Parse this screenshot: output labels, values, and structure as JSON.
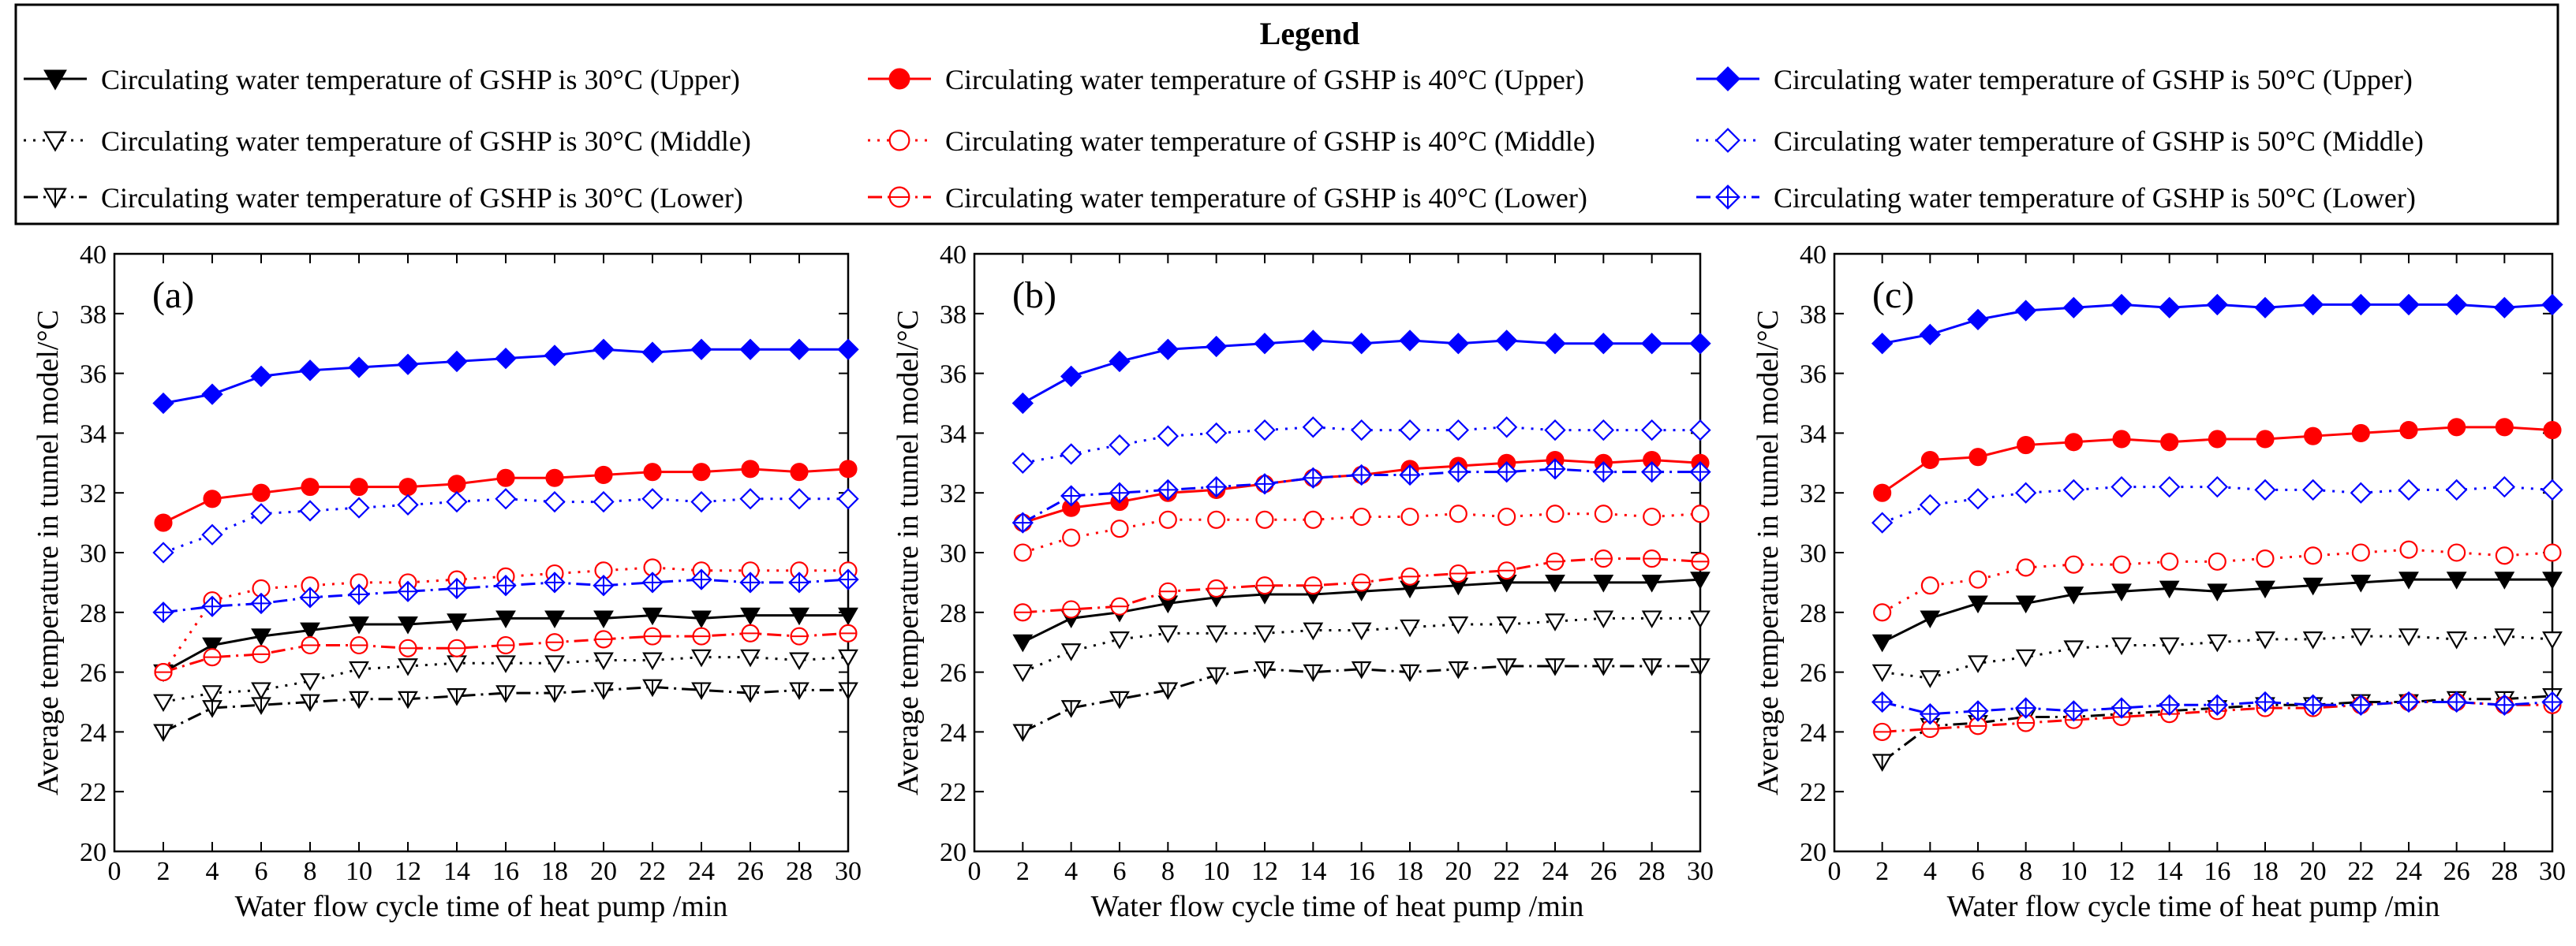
{
  "legend": {
    "title": "Legend",
    "entries": [
      {
        "label": "Circulating water temperature of GSHP is 30°C (Upper)",
        "color": "#000000",
        "marker": "triangle-down-filled",
        "dash": "solid"
      },
      {
        "label": "Circulating water temperature of GSHP is 40°C (Upper)",
        "color": "#ff0000",
        "marker": "circle-filled",
        "dash": "solid"
      },
      {
        "label": "Circulating water temperature of GSHP is 50°C (Upper)",
        "color": "#0000ff",
        "marker": "diamond-filled",
        "dash": "solid"
      },
      {
        "label": "Circulating water temperature of GSHP is 30°C (Middle)",
        "color": "#000000",
        "marker": "triangle-down-open",
        "dash": "dot"
      },
      {
        "label": "Circulating water temperature of GSHP is  40°C (Middle)",
        "color": "#ff0000",
        "marker": "circle-open",
        "dash": "dot"
      },
      {
        "label": "Circulating water temperature of GSHP is 50°C (Middle)",
        "color": "#0000ff",
        "marker": "diamond-open",
        "dash": "dot"
      },
      {
        "label": "Circulating water temperature of GSHP is 30°C (Lower)",
        "color": "#000000",
        "marker": "triangle-down-cross",
        "dash": "dashdot"
      },
      {
        "label": "Circulating water temperature of GSHP is  40°C (Lower)",
        "color": "#ff0000",
        "marker": "circle-cross",
        "dash": "dashdot"
      },
      {
        "label": "Circulating water temperature of GSHP is 50°C (Lower)",
        "color": "#0000ff",
        "marker": "diamond-cross",
        "dash": "dashdot"
      }
    ]
  },
  "chart_data": [
    {
      "type": "line",
      "panel_label": "(a)",
      "xlabel": "Water flow cycle time of heat pump /min",
      "ylabel": "Average temperature in tunnel model/°C",
      "xlim": [
        0,
        30
      ],
      "ylim": [
        20,
        40
      ],
      "xticks": [
        0,
        2,
        4,
        6,
        8,
        10,
        12,
        14,
        16,
        18,
        20,
        22,
        24,
        26,
        28,
        30
      ],
      "yticks": [
        20,
        22,
        24,
        26,
        28,
        30,
        32,
        34,
        36,
        38,
        40
      ],
      "x": [
        2,
        4,
        6,
        8,
        10,
        12,
        14,
        16,
        18,
        20,
        22,
        24,
        26,
        28,
        30
      ],
      "series": [
        {
          "name": "30°C (Upper)",
          "values": [
            26.0,
            26.9,
            27.2,
            27.4,
            27.6,
            27.6,
            27.7,
            27.8,
            27.8,
            27.8,
            27.9,
            27.8,
            27.9,
            27.9,
            27.9
          ]
        },
        {
          "name": "40°C (Upper)",
          "values": [
            31.0,
            31.8,
            32.0,
            32.2,
            32.2,
            32.2,
            32.3,
            32.5,
            32.5,
            32.6,
            32.7,
            32.7,
            32.8,
            32.7,
            32.8
          ]
        },
        {
          "name": "50°C (Upper)",
          "values": [
            35.0,
            35.3,
            35.9,
            36.1,
            36.2,
            36.3,
            36.4,
            36.5,
            36.6,
            36.8,
            36.7,
            36.8,
            36.8,
            36.8,
            36.8
          ]
        },
        {
          "name": "30°C (Middle)",
          "values": [
            25.0,
            25.3,
            25.4,
            25.7,
            26.1,
            26.2,
            26.3,
            26.3,
            26.3,
            26.4,
            26.4,
            26.5,
            26.5,
            26.4,
            26.5
          ]
        },
        {
          "name": "40°C (Middle)",
          "values": [
            26.0,
            28.4,
            28.8,
            28.9,
            29.0,
            29.0,
            29.1,
            29.2,
            29.3,
            29.4,
            29.5,
            29.4,
            29.4,
            29.4,
            29.4
          ]
        },
        {
          "name": "50°C (Middle)",
          "values": [
            30.0,
            30.6,
            31.3,
            31.4,
            31.5,
            31.6,
            31.7,
            31.8,
            31.7,
            31.7,
            31.8,
            31.7,
            31.8,
            31.8,
            31.8
          ]
        },
        {
          "name": "30°C (Lower)",
          "values": [
            24.0,
            24.8,
            24.9,
            25.0,
            25.1,
            25.1,
            25.2,
            25.3,
            25.3,
            25.4,
            25.5,
            25.4,
            25.3,
            25.4,
            25.4
          ]
        },
        {
          "name": "40°C (Lower)",
          "values": [
            26.0,
            26.5,
            26.6,
            26.9,
            26.9,
            26.8,
            26.8,
            26.9,
            27.0,
            27.1,
            27.2,
            27.2,
            27.3,
            27.2,
            27.3
          ]
        },
        {
          "name": "50°C (Lower)",
          "values": [
            28.0,
            28.2,
            28.3,
            28.5,
            28.6,
            28.7,
            28.8,
            28.9,
            29.0,
            28.9,
            29.0,
            29.1,
            29.0,
            29.0,
            29.1
          ]
        }
      ]
    },
    {
      "type": "line",
      "panel_label": "(b)",
      "xlabel": "Water flow cycle time of heat pump /min",
      "ylabel": "Average temperature in tunnel model/°C",
      "xlim": [
        0,
        30
      ],
      "ylim": [
        20,
        40
      ],
      "xticks": [
        0,
        2,
        4,
        6,
        8,
        10,
        12,
        14,
        16,
        18,
        20,
        22,
        24,
        26,
        28,
        30
      ],
      "yticks": [
        20,
        22,
        24,
        26,
        28,
        30,
        32,
        34,
        36,
        38,
        40
      ],
      "x": [
        2,
        4,
        6,
        8,
        10,
        12,
        14,
        16,
        18,
        20,
        22,
        24,
        26,
        28,
        30
      ],
      "series": [
        {
          "name": "30°C (Upper)",
          "values": [
            27.0,
            27.8,
            28.0,
            28.3,
            28.5,
            28.6,
            28.6,
            28.7,
            28.8,
            28.9,
            29.0,
            29.0,
            29.0,
            29.0,
            29.1
          ]
        },
        {
          "name": "40°C (Upper)",
          "values": [
            31.0,
            31.5,
            31.7,
            32.0,
            32.1,
            32.3,
            32.5,
            32.6,
            32.8,
            32.9,
            33.0,
            33.1,
            33.0,
            33.1,
            33.0
          ]
        },
        {
          "name": "50°C (Upper)",
          "values": [
            35.0,
            35.9,
            36.4,
            36.8,
            36.9,
            37.0,
            37.1,
            37.0,
            37.1,
            37.0,
            37.1,
            37.0,
            37.0,
            37.0,
            37.0
          ]
        },
        {
          "name": "30°C (Middle)",
          "values": [
            26.0,
            26.7,
            27.1,
            27.3,
            27.3,
            27.3,
            27.4,
            27.4,
            27.5,
            27.6,
            27.6,
            27.7,
            27.8,
            27.8,
            27.8
          ]
        },
        {
          "name": "40°C (Middle)",
          "values": [
            30.0,
            30.5,
            30.8,
            31.1,
            31.1,
            31.1,
            31.1,
            31.2,
            31.2,
            31.3,
            31.2,
            31.3,
            31.3,
            31.2,
            31.3
          ]
        },
        {
          "name": "50°C (Middle)",
          "values": [
            33.0,
            33.3,
            33.6,
            33.9,
            34.0,
            34.1,
            34.2,
            34.1,
            34.1,
            34.1,
            34.2,
            34.1,
            34.1,
            34.1,
            34.1
          ]
        },
        {
          "name": "30°C (Lower)",
          "values": [
            24.0,
            24.8,
            25.1,
            25.4,
            25.9,
            26.1,
            26.0,
            26.1,
            26.0,
            26.1,
            26.2,
            26.2,
            26.2,
            26.2,
            26.2
          ]
        },
        {
          "name": "40°C (Lower)",
          "values": [
            28.0,
            28.1,
            28.2,
            28.7,
            28.8,
            28.9,
            28.9,
            29.0,
            29.2,
            29.3,
            29.4,
            29.7,
            29.8,
            29.8,
            29.7
          ]
        },
        {
          "name": "50°C (Lower)",
          "values": [
            31.0,
            31.9,
            32.0,
            32.1,
            32.2,
            32.3,
            32.5,
            32.6,
            32.6,
            32.7,
            32.7,
            32.8,
            32.7,
            32.7,
            32.7
          ]
        }
      ]
    },
    {
      "type": "line",
      "panel_label": "(c)",
      "xlabel": "Water flow cycle time of heat pump /min",
      "ylabel": "Average temperature in tunnel model/°C",
      "xlim": [
        0,
        30
      ],
      "ylim": [
        20,
        40
      ],
      "xticks": [
        0,
        2,
        4,
        6,
        8,
        10,
        12,
        14,
        16,
        18,
        20,
        22,
        24,
        26,
        28,
        30
      ],
      "yticks": [
        20,
        22,
        24,
        26,
        28,
        30,
        32,
        34,
        36,
        38,
        40
      ],
      "x": [
        2,
        4,
        6,
        8,
        10,
        12,
        14,
        16,
        18,
        20,
        22,
        24,
        26,
        28,
        30
      ],
      "series": [
        {
          "name": "30°C (Upper)",
          "values": [
            27.0,
            27.8,
            28.3,
            28.3,
            28.6,
            28.7,
            28.8,
            28.7,
            28.8,
            28.9,
            29.0,
            29.1,
            29.1,
            29.1,
            29.1
          ]
        },
        {
          "name": "40°C (Upper)",
          "values": [
            32.0,
            33.1,
            33.2,
            33.6,
            33.7,
            33.8,
            33.7,
            33.8,
            33.8,
            33.9,
            34.0,
            34.1,
            34.2,
            34.2,
            34.1
          ]
        },
        {
          "name": "50°C (Upper)",
          "values": [
            37.0,
            37.3,
            37.8,
            38.1,
            38.2,
            38.3,
            38.2,
            38.3,
            38.2,
            38.3,
            38.3,
            38.3,
            38.3,
            38.2,
            38.3
          ]
        },
        {
          "name": "30°C (Middle)",
          "values": [
            26.0,
            25.8,
            26.3,
            26.5,
            26.8,
            26.9,
            26.9,
            27.0,
            27.1,
            27.1,
            27.2,
            27.2,
            27.1,
            27.2,
            27.1
          ]
        },
        {
          "name": "40°C (Middle)",
          "values": [
            28.0,
            28.9,
            29.1,
            29.5,
            29.6,
            29.6,
            29.7,
            29.7,
            29.8,
            29.9,
            30.0,
            30.1,
            30.0,
            29.9,
            30.0
          ]
        },
        {
          "name": "50°C (Middle)",
          "values": [
            31.0,
            31.6,
            31.8,
            32.0,
            32.1,
            32.2,
            32.2,
            32.2,
            32.1,
            32.1,
            32.0,
            32.1,
            32.1,
            32.2,
            32.1
          ]
        },
        {
          "name": "30°C (Lower)",
          "values": [
            23.0,
            24.2,
            24.3,
            24.5,
            24.5,
            24.6,
            24.7,
            24.8,
            24.9,
            24.9,
            25.0,
            25.0,
            25.1,
            25.1,
            25.2
          ]
        },
        {
          "name": "40°C (Lower)",
          "values": [
            24.0,
            24.1,
            24.2,
            24.3,
            24.4,
            24.5,
            24.6,
            24.7,
            24.8,
            24.8,
            24.9,
            25.0,
            25.0,
            24.9,
            24.9
          ]
        },
        {
          "name": "50°C (Lower)",
          "values": [
            25.0,
            24.6,
            24.7,
            24.8,
            24.7,
            24.8,
            24.9,
            24.9,
            25.0,
            24.9,
            24.9,
            25.0,
            25.0,
            24.9,
            25.0
          ]
        }
      ]
    }
  ]
}
